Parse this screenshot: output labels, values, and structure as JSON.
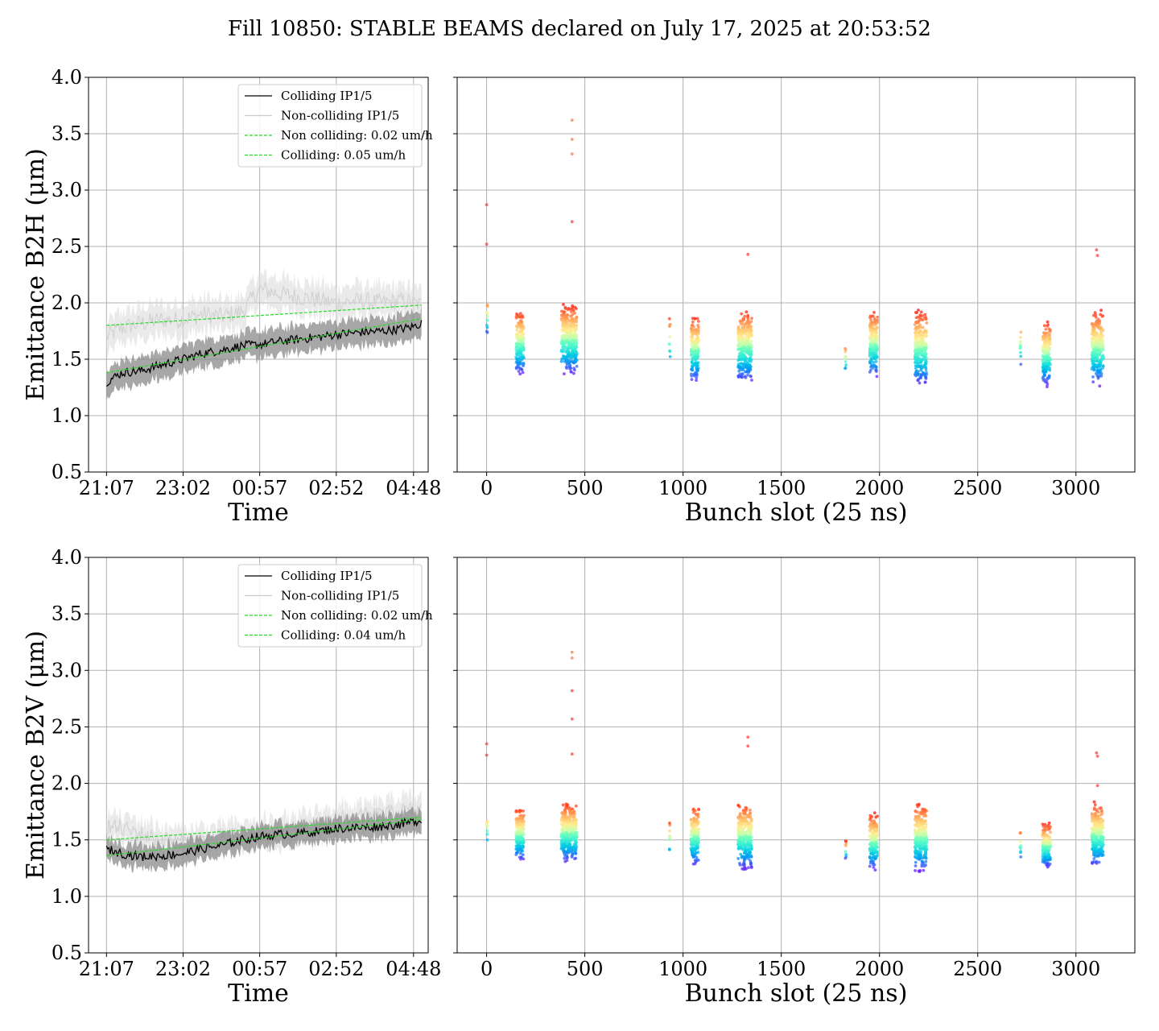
{
  "figure": {
    "title": "Fill 10850: STABLE BEAMS declared on July 17, 2025 at 20:53:52"
  },
  "chart_data": [
    {
      "type": "line",
      "panel": "top-left",
      "xlabel": "Time",
      "ylabel": "Emittance B2H (μm)",
      "ylim": [
        0.5,
        4.0
      ],
      "yticks": [
        "0.5",
        "1.0",
        "1.5",
        "2.0",
        "2.5",
        "3.0",
        "3.5",
        "4.0"
      ],
      "xticks": [
        "21:07",
        "23:02",
        "00:57",
        "02:52",
        "04:48"
      ],
      "grid": true,
      "legend_position": "upper-right",
      "legend": [
        {
          "label": "Colliding IP1/5",
          "color": "#000000",
          "style": "solid"
        },
        {
          "label": "Non-colliding IP1/5",
          "color": "#cccccc",
          "style": "solid"
        },
        {
          "label": "Non colliding: 0.02 um/h",
          "color": "#22dd22",
          "style": "dashed"
        },
        {
          "label": "Colliding: 0.05 um/h",
          "color": "#22dd22",
          "style": "dashed"
        }
      ],
      "series": [
        {
          "name": "Colliding IP1/5",
          "x": [
            "21:07",
            "21:30",
            "22:00",
            "22:30",
            "23:02",
            "23:30",
            "00:00",
            "00:30",
            "00:57",
            "01:30",
            "02:00",
            "02:30",
            "02:52",
            "03:30",
            "04:00",
            "04:30",
            "04:48",
            "05:00"
          ],
          "values": [
            1.3,
            1.38,
            1.4,
            1.45,
            1.5,
            1.55,
            1.58,
            1.62,
            1.63,
            1.66,
            1.68,
            1.7,
            1.72,
            1.74,
            1.75,
            1.77,
            1.79,
            1.82
          ],
          "band_halfwidth": 0.12
        },
        {
          "name": "Non-colliding IP1/5",
          "x": [
            "21:07",
            "21:30",
            "22:00",
            "22:30",
            "23:02",
            "23:30",
            "00:00",
            "00:30",
            "00:57",
            "01:30",
            "02:00",
            "02:30",
            "02:52",
            "03:30",
            "04:00",
            "04:30",
            "04:48",
            "05:00"
          ],
          "values": [
            1.7,
            1.78,
            1.82,
            1.85,
            1.85,
            1.9,
            1.88,
            1.92,
            2.12,
            2.08,
            2.05,
            2.02,
            2.0,
            2.02,
            2.0,
            2.02,
            2.0,
            1.98
          ],
          "band_halfwidth": 0.14
        },
        {
          "name": "Non colliding: 0.02 um/h",
          "x": [
            "21:07",
            "05:00"
          ],
          "values": [
            1.8,
            1.98
          ]
        },
        {
          "name": "Colliding: 0.05 um/h",
          "x": [
            "21:07",
            "05:00"
          ],
          "values": [
            1.38,
            1.86
          ]
        }
      ]
    },
    {
      "type": "scatter",
      "panel": "top-right",
      "xlabel": "Bunch slot (25 ns)",
      "xlim": [
        -150,
        3300
      ],
      "ylim": [
        0.5,
        4.0
      ],
      "xticks": [
        "0",
        "500",
        "1000",
        "1500",
        "2000",
        "2500",
        "3000"
      ],
      "grid": true,
      "colormap": "rainbow",
      "groups": [
        {
          "x_range": [
            0,
            5
          ],
          "y_range": [
            1.7,
            2.05
          ]
        },
        {
          "x_range": [
            150,
            190
          ],
          "y_range": [
            1.35,
            1.95
          ]
        },
        {
          "x_range": [
            380,
            460
          ],
          "y_range": [
            1.35,
            2.0
          ]
        },
        {
          "x_range": [
            930,
            935
          ],
          "y_range": [
            1.4,
            1.9
          ]
        },
        {
          "x_range": [
            1040,
            1080
          ],
          "y_range": [
            1.28,
            1.9
          ]
        },
        {
          "x_range": [
            1280,
            1350
          ],
          "y_range": [
            1.28,
            1.95
          ]
        },
        {
          "x_range": [
            1825,
            1830
          ],
          "y_range": [
            1.35,
            1.65
          ]
        },
        {
          "x_range": [
            1950,
            1990
          ],
          "y_range": [
            1.32,
            1.95
          ]
        },
        {
          "x_range": [
            2180,
            2240
          ],
          "y_range": [
            1.25,
            1.95
          ]
        },
        {
          "x_range": [
            2715,
            2720
          ],
          "y_range": [
            1.4,
            1.85
          ]
        },
        {
          "x_range": [
            2830,
            2870
          ],
          "y_range": [
            1.25,
            1.85
          ]
        },
        {
          "x_range": [
            3080,
            3140
          ],
          "y_range": [
            1.25,
            1.95
          ]
        }
      ],
      "outliers": [
        {
          "x": 0,
          "y": 2.87
        },
        {
          "x": 0,
          "y": 2.52
        },
        {
          "x": 435,
          "y": 3.62
        },
        {
          "x": 435,
          "y": 3.45
        },
        {
          "x": 435,
          "y": 3.32
        },
        {
          "x": 435,
          "y": 2.72
        },
        {
          "x": 1330,
          "y": 2.43
        },
        {
          "x": 3105,
          "y": 2.47
        },
        {
          "x": 3110,
          "y": 2.42
        }
      ]
    },
    {
      "type": "line",
      "panel": "bottom-left",
      "xlabel": "Time",
      "ylabel": "Emittance B2V (μm)",
      "ylim": [
        0.5,
        4.0
      ],
      "yticks": [
        "0.5",
        "1.0",
        "1.5",
        "2.0",
        "2.5",
        "3.0",
        "3.5",
        "4.0"
      ],
      "xticks": [
        "21:07",
        "23:02",
        "00:57",
        "02:52",
        "04:48"
      ],
      "grid": true,
      "legend_position": "upper-right",
      "legend": [
        {
          "label": "Colliding IP1/5",
          "color": "#000000",
          "style": "solid"
        },
        {
          "label": "Non-colliding IP1/5",
          "color": "#cccccc",
          "style": "solid"
        },
        {
          "label": "Non colliding: 0.02 um/h",
          "color": "#22dd22",
          "style": "dashed"
        },
        {
          "label": "Colliding: 0.04 um/h",
          "color": "#22dd22",
          "style": "dashed"
        }
      ],
      "series": [
        {
          "name": "Colliding IP1/5",
          "x": [
            "21:07",
            "21:30",
            "22:00",
            "22:30",
            "23:02",
            "23:30",
            "00:00",
            "00:30",
            "00:57",
            "01:30",
            "02:00",
            "02:30",
            "02:52",
            "03:30",
            "04:00",
            "04:30",
            "04:48",
            "05:00"
          ],
          "values": [
            1.42,
            1.38,
            1.35,
            1.36,
            1.38,
            1.42,
            1.45,
            1.5,
            1.53,
            1.55,
            1.56,
            1.58,
            1.6,
            1.61,
            1.62,
            1.64,
            1.66,
            1.68
          ],
          "band_halfwidth": 0.1
        },
        {
          "name": "Non-colliding IP1/5",
          "x": [
            "21:07",
            "21:30",
            "22:00",
            "22:30",
            "23:02",
            "23:30",
            "00:00",
            "00:30",
            "00:57",
            "01:30",
            "02:00",
            "02:30",
            "02:52",
            "03:30",
            "04:00",
            "04:30",
            "04:48",
            "05:00"
          ],
          "values": [
            1.62,
            1.6,
            1.55,
            1.5,
            1.48,
            1.5,
            1.52,
            1.54,
            1.55,
            1.57,
            1.6,
            1.64,
            1.68,
            1.7,
            1.72,
            1.75,
            1.76,
            1.78
          ],
          "band_halfwidth": 0.12
        },
        {
          "name": "Non colliding: 0.02 um/h",
          "x": [
            "21:07",
            "05:00"
          ],
          "values": [
            1.5,
            1.7
          ]
        },
        {
          "name": "Colliding: 0.04 um/h",
          "x": [
            "21:07",
            "05:00"
          ],
          "values": [
            1.36,
            1.68
          ]
        }
      ]
    },
    {
      "type": "scatter",
      "panel": "bottom-right",
      "xlabel": "Bunch slot (25 ns)",
      "xlim": [
        -150,
        3300
      ],
      "ylim": [
        0.5,
        4.0
      ],
      "xticks": [
        "0",
        "500",
        "1000",
        "1500",
        "2000",
        "2500",
        "3000"
      ],
      "grid": true,
      "colormap": "rainbow",
      "groups": [
        {
          "x_range": [
            0,
            5
          ],
          "y_range": [
            1.4,
            1.8
          ]
        },
        {
          "x_range": [
            150,
            190
          ],
          "y_range": [
            1.3,
            1.8
          ]
        },
        {
          "x_range": [
            380,
            460
          ],
          "y_range": [
            1.28,
            1.85
          ]
        },
        {
          "x_range": [
            930,
            935
          ],
          "y_range": [
            1.32,
            1.7
          ]
        },
        {
          "x_range": [
            1040,
            1080
          ],
          "y_range": [
            1.25,
            1.82
          ]
        },
        {
          "x_range": [
            1280,
            1350
          ],
          "y_range": [
            1.22,
            1.85
          ]
        },
        {
          "x_range": [
            1825,
            1830
          ],
          "y_range": [
            1.32,
            1.5
          ]
        },
        {
          "x_range": [
            1950,
            1990
          ],
          "y_range": [
            1.22,
            1.75
          ]
        },
        {
          "x_range": [
            2180,
            2240
          ],
          "y_range": [
            1.2,
            1.85
          ]
        },
        {
          "x_range": [
            2715,
            2720
          ],
          "y_range": [
            1.3,
            1.62
          ]
        },
        {
          "x_range": [
            2830,
            2870
          ],
          "y_range": [
            1.24,
            1.66
          ]
        },
        {
          "x_range": [
            3080,
            3140
          ],
          "y_range": [
            1.24,
            1.85
          ]
        }
      ],
      "outliers": [
        {
          "x": 0,
          "y": 2.35
        },
        {
          "x": 0,
          "y": 2.25
        },
        {
          "x": 435,
          "y": 3.16
        },
        {
          "x": 435,
          "y": 3.11
        },
        {
          "x": 435,
          "y": 2.82
        },
        {
          "x": 435,
          "y": 2.57
        },
        {
          "x": 435,
          "y": 2.26
        },
        {
          "x": 1330,
          "y": 2.41
        },
        {
          "x": 1330,
          "y": 2.33
        },
        {
          "x": 3105,
          "y": 2.27
        },
        {
          "x": 3110,
          "y": 2.24
        },
        {
          "x": 3110,
          "y": 1.98
        }
      ]
    }
  ]
}
